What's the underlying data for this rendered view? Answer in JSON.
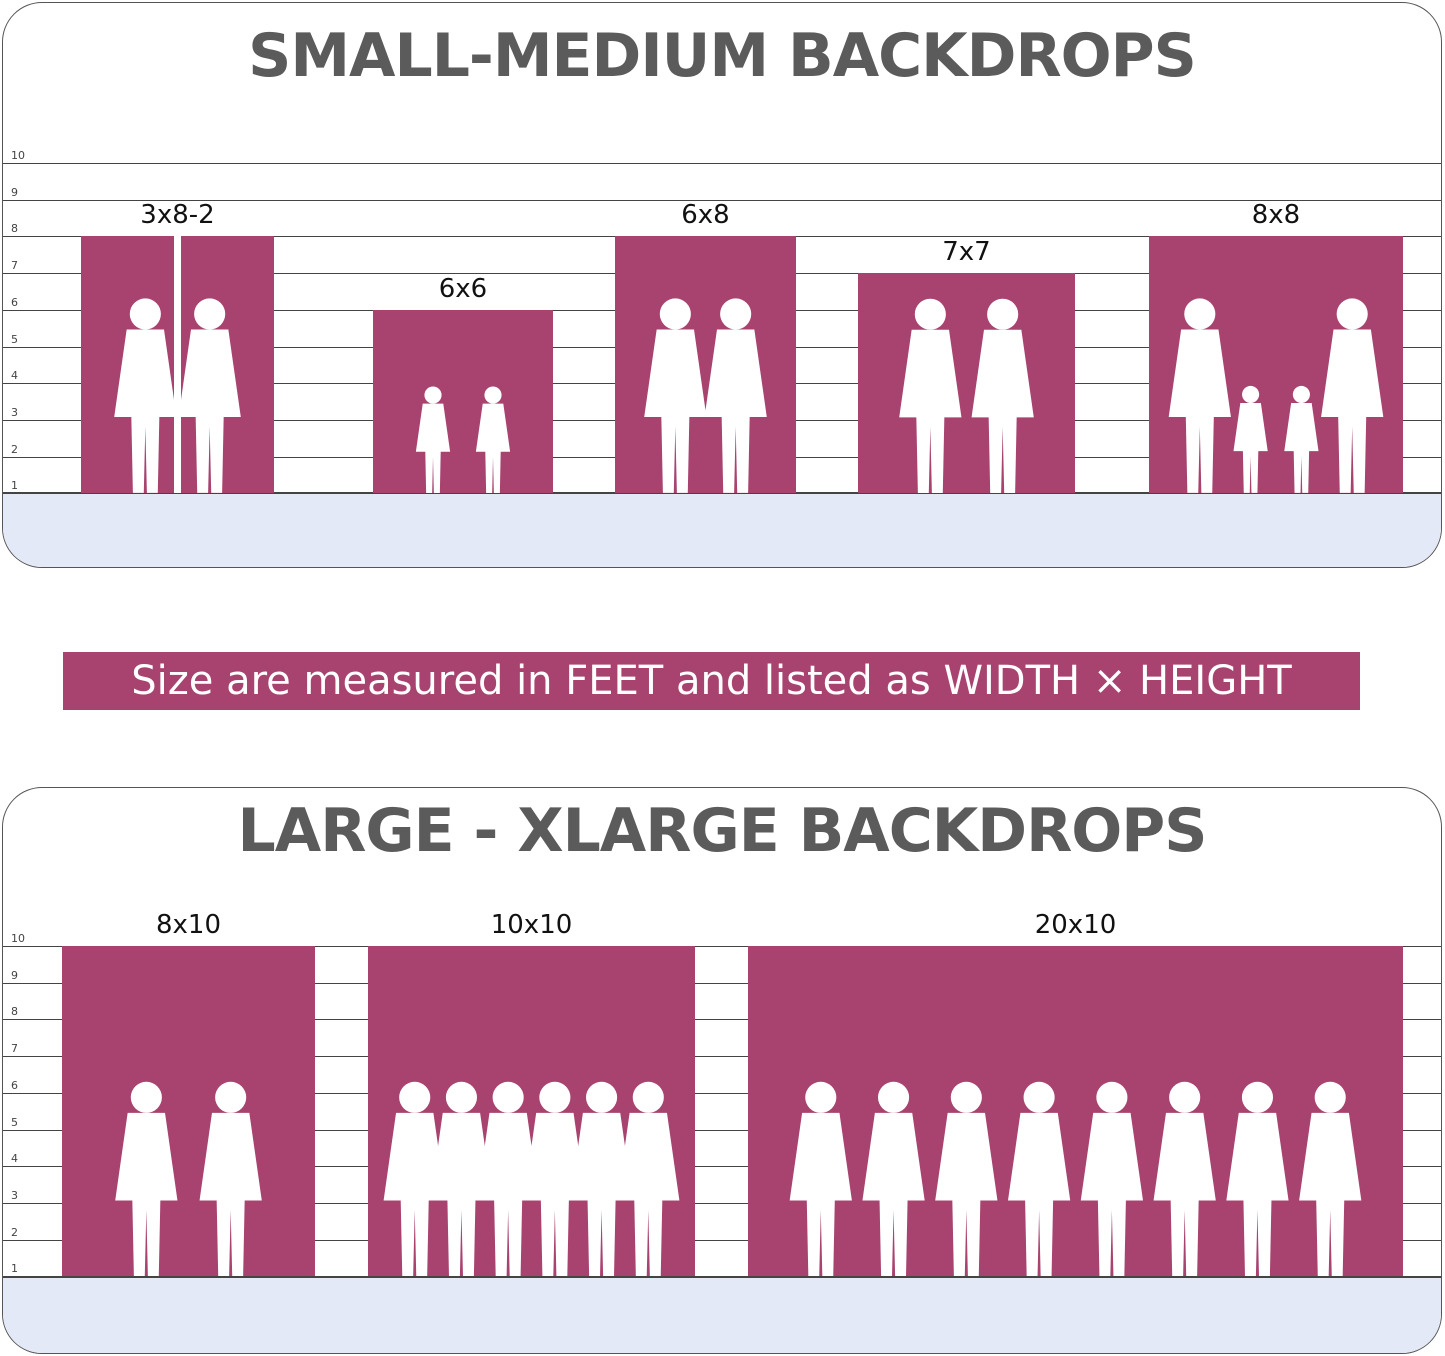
{
  "colors": {
    "backdrop": "#a8436f",
    "ground": "#e4e9f7",
    "title": "#5b5b5b"
  },
  "top_panel": {
    "title": "SMALL-MEDIUM BACKDROPS",
    "ticks": [
      "10",
      "9",
      "8",
      "7",
      "6",
      "5",
      "4",
      "3",
      "2",
      "1"
    ],
    "backdrops": [
      {
        "label": "3x8-2",
        "width_ft": 3,
        "height_ft": 8,
        "panels": 2,
        "people": 2
      },
      {
        "label": "6x6",
        "width_ft": 6,
        "height_ft": 6,
        "people": 2
      },
      {
        "label": "6x8",
        "width_ft": 6,
        "height_ft": 8,
        "people": 2
      },
      {
        "label": "7x7",
        "width_ft": 7,
        "height_ft": 7,
        "people": 2
      },
      {
        "label": "8x8",
        "width_ft": 8,
        "height_ft": 8,
        "people": 4
      }
    ]
  },
  "banner": {
    "text": "Size are measured in FEET and listed as WIDTH × HEIGHT"
  },
  "bottom_panel": {
    "title": "LARGE - XLARGE BACKDROPS",
    "ticks": [
      "10",
      "9",
      "8",
      "7",
      "6",
      "5",
      "4",
      "3",
      "2",
      "1"
    ],
    "backdrops": [
      {
        "label": "8x10",
        "width_ft": 8,
        "height_ft": 10,
        "people": 2
      },
      {
        "label": "10x10",
        "width_ft": 10,
        "height_ft": 10,
        "people": 6
      },
      {
        "label": "20x10",
        "width_ft": 20,
        "height_ft": 10,
        "people": 8
      }
    ]
  }
}
